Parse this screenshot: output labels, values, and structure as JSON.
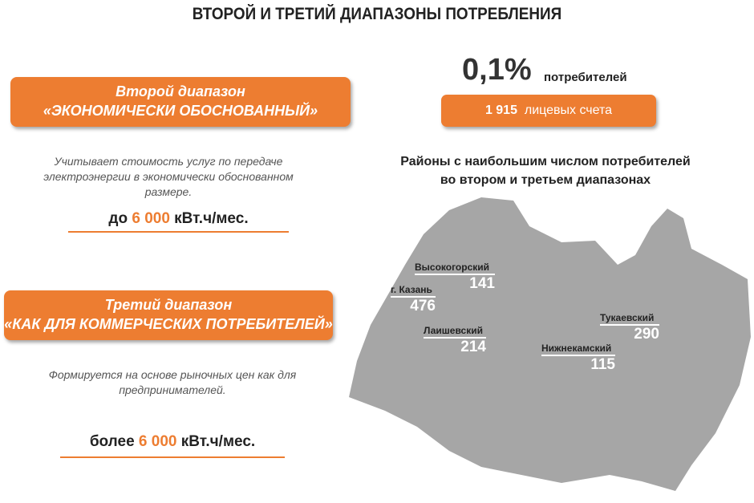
{
  "title": "ВТОРОЙ И ТРЕТИЙ ДИАПАЗОНЫ ПОТРЕБЛЕНИЯ",
  "colors": {
    "accent": "#ed7d31",
    "map": "#a6a6a6"
  },
  "second": {
    "heading1": "Второй диапазон",
    "heading2": "«ЭКОНОМИЧЕСКИ ОБОСНОВАННЫЙ»",
    "description": "Учитывает стоимость услуг по передаче электроэнергии в экономически обоснованном размере.",
    "limit_prefix": "до",
    "limit_value": "6 000",
    "limit_unit": "кВт.ч/мес."
  },
  "third": {
    "heading1": "Третий диапазон",
    "heading2": "«КАК ДЛЯ КОММЕРЧЕСКИХ ПОТРЕБИТЕЛЕЙ»",
    "description": "Формируется на основе рыночных цен как для предпринимателей.",
    "limit_prefix": "более",
    "limit_value": "6 000",
    "limit_unit": "кВт.ч/мес."
  },
  "share": {
    "percent": "0,1%",
    "label": "потребителей",
    "accounts_value": "1 915",
    "accounts_label": "лицевых счета"
  },
  "map": {
    "title1": "Районы с наибольшим числом потребителей",
    "title2": "во втором и третьем диапазонах",
    "districts": [
      {
        "name": "Высокогорский",
        "value": "141"
      },
      {
        "name": "г. Казань",
        "value": "476"
      },
      {
        "name": "Лаишевский",
        "value": "214"
      },
      {
        "name": "Тукаевский",
        "value": "290"
      },
      {
        "name": "Нижнекамский",
        "value": "115"
      }
    ]
  }
}
